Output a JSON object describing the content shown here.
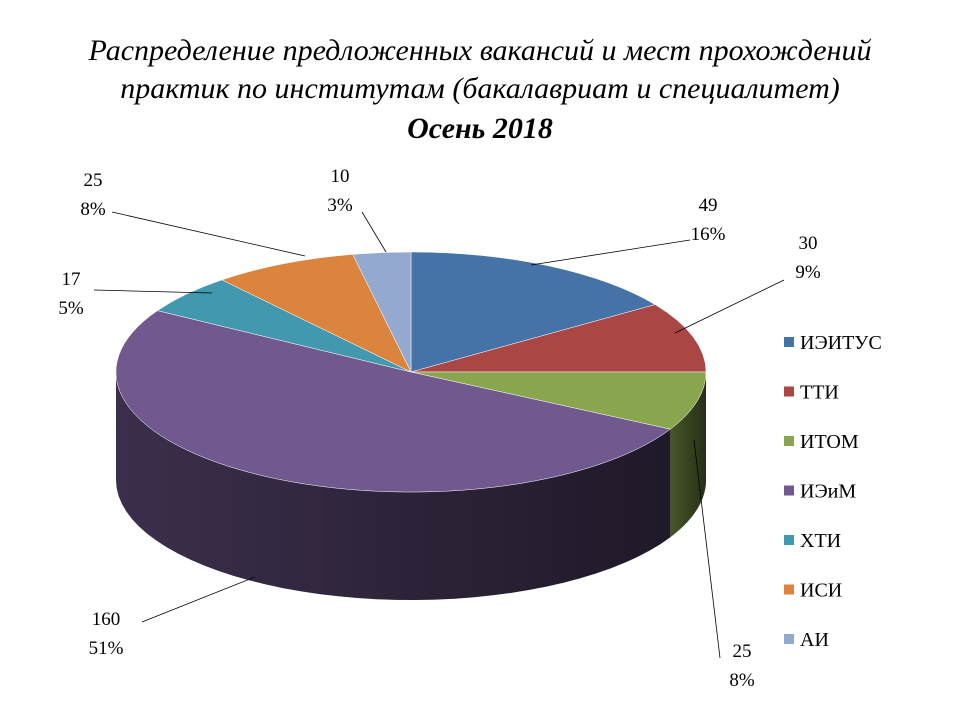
{
  "chart_data": {
    "type": "pie",
    "title_lines": [
      "Распределение предложенных вакансий и мест прохождений",
      "практик по институтам (бакалавриат и специалитет)"
    ],
    "subtitle": "Осень 2018",
    "categories": [
      "ИЭИТУС",
      "ТТИ",
      "ИТОМ",
      "ИЭиМ",
      "ХТИ",
      "ИСИ",
      "АИ"
    ],
    "values": [
      49,
      30,
      25,
      160,
      17,
      25,
      10
    ],
    "percent_labels": [
      "16%",
      "9%",
      "8%",
      "51%",
      "5%",
      "8%",
      "3%"
    ],
    "colors": [
      "#4572A7",
      "#AA4643",
      "#89A54E",
      "#71588F",
      "#4198AF",
      "#DB843D",
      "#93A9CF"
    ],
    "legend_position": "right",
    "style": "3d"
  }
}
